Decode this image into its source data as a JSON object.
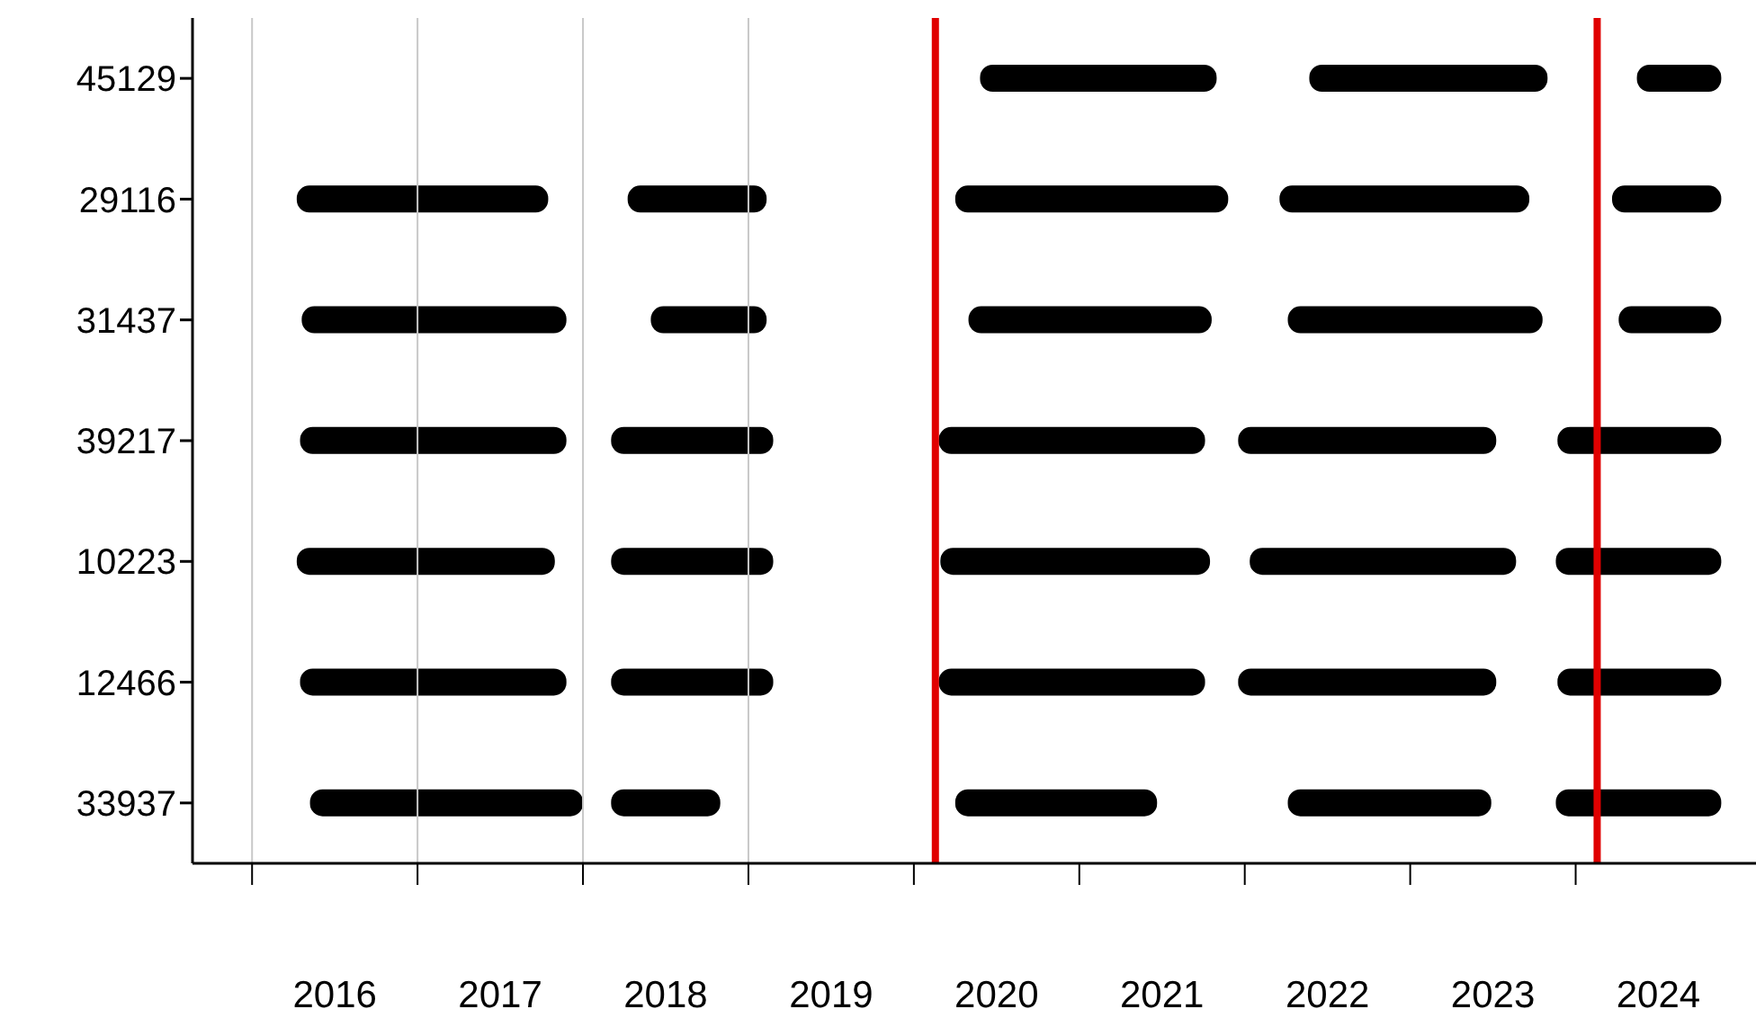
{
  "chart_data": {
    "type": "bar",
    "orientation": "horizontal",
    "categories": [
      "45129",
      "29116",
      "31437",
      "39217",
      "10223",
      "12466",
      "33937"
    ],
    "series": [
      {
        "color": "#000000",
        "base": [
          null,
          2016.27,
          2016.3,
          2016.29,
          2016.27,
          2016.29,
          2016.35
        ],
        "values": [
          null,
          1.52,
          1.6,
          1.61,
          1.56,
          1.61,
          1.65
        ]
      },
      {
        "color": "#000000",
        "base": [
          null,
          2018.27,
          2018.41,
          2018.17,
          2018.17,
          2018.17,
          2018.17
        ],
        "values": [
          null,
          0.84,
          0.7,
          0.98,
          0.98,
          0.98,
          0.66
        ]
      },
      {
        "color": "#000000",
        "base": [
          2020.4,
          2020.25,
          2020.33,
          2020.15,
          2020.16,
          2020.15,
          2020.25
        ],
        "values": [
          1.43,
          1.65,
          1.47,
          1.61,
          1.63,
          1.61,
          1.22
        ]
      },
      {
        "color": "#000000",
        "base": [
          2022.39,
          2022.21,
          2022.26,
          2021.96,
          2022.03,
          2021.96,
          2022.26
        ],
        "values": [
          1.44,
          1.51,
          1.54,
          1.56,
          1.61,
          1.56,
          1.23
        ]
      },
      {
        "color": "#000000",
        "base": [
          2024.37,
          2024.22,
          2024.26,
          2023.89,
          2023.88,
          2023.89,
          2023.88
        ],
        "values": [
          0.51,
          0.66,
          0.62,
          0.99,
          1.0,
          0.99,
          1.0
        ]
      }
    ],
    "xlim": [
      2015.64,
      2025.09
    ],
    "xticks": [
      {
        "value": 2016,
        "label": null
      },
      {
        "value": 2017,
        "label": null
      },
      {
        "value": 2018,
        "label": null
      },
      {
        "value": 2019,
        "label": null
      },
      {
        "value": 2020,
        "label": null
      },
      {
        "value": 2021,
        "label": null
      },
      {
        "value": 2022,
        "label": null
      },
      {
        "value": 2023,
        "label": null
      },
      {
        "value": 2024,
        "label": null
      },
      {
        "value": 2016.5,
        "label": "2016"
      },
      {
        "value": 2017.5,
        "label": "2017"
      },
      {
        "value": 2018.5,
        "label": "2018"
      },
      {
        "value": 2019.5,
        "label": "2019"
      },
      {
        "value": 2020.5,
        "label": "2020"
      },
      {
        "value": 2021.5,
        "label": "2021"
      },
      {
        "value": 2022.5,
        "label": "2022"
      },
      {
        "value": 2023.5,
        "label": "2023"
      },
      {
        "value": 2024.5,
        "label": "2024"
      }
    ],
    "ref_lines": [
      {
        "axis": "x",
        "value": 2016,
        "color": "#c8c8c8"
      },
      {
        "axis": "x",
        "value": 2017,
        "color": "#c8c8c8"
      },
      {
        "axis": "x",
        "value": 2018,
        "color": "#c8c8c8"
      },
      {
        "axis": "x",
        "value": 2019,
        "color": "#c8c8c8"
      },
      {
        "axis": "x",
        "value": 2020.13,
        "color": "#e00000"
      },
      {
        "axis": "x",
        "value": 2024.13,
        "color": "#e00000"
      }
    ],
    "grid": false,
    "legend": false
  }
}
